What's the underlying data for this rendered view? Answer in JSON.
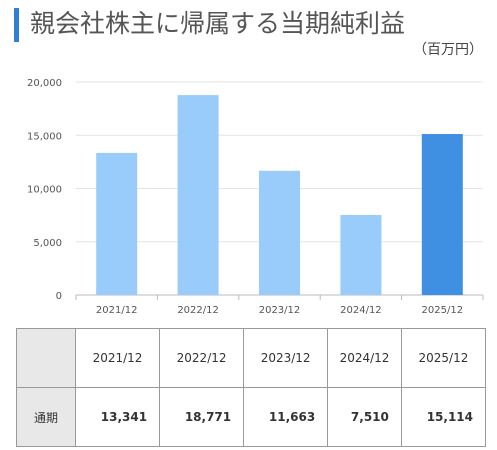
{
  "title": "親会社株主に帰属する当期純利益",
  "unit": "（百万円）",
  "colors": {
    "title_bar": "#2f7fd6",
    "bar": "#99cbfb",
    "bar_highlight": "#3f8fe3",
    "grid": "#e3e3e3",
    "table_header_bg": "#e8e8e8"
  },
  "chart_data": {
    "type": "bar",
    "categories": [
      "2021/12",
      "2022/12",
      "2023/12",
      "2024/12",
      "2025/12"
    ],
    "values": [
      13341,
      18771,
      11663,
      7510,
      15114
    ],
    "highlight_index": 4,
    "ylim": [
      0,
      20000
    ],
    "yticks": [
      0,
      5000,
      10000,
      15000,
      20000
    ],
    "ytick_labels": [
      "0",
      "5,000",
      "10,000",
      "15,000",
      "20,000"
    ],
    "grid": true
  },
  "table": {
    "row_label": "通期",
    "headers": [
      "2021/12",
      "2022/12",
      "2023/12",
      "2024/12",
      "2025/12"
    ],
    "values": [
      "13,341",
      "18,771",
      "11,663",
      "7,510",
      "15,114"
    ]
  }
}
